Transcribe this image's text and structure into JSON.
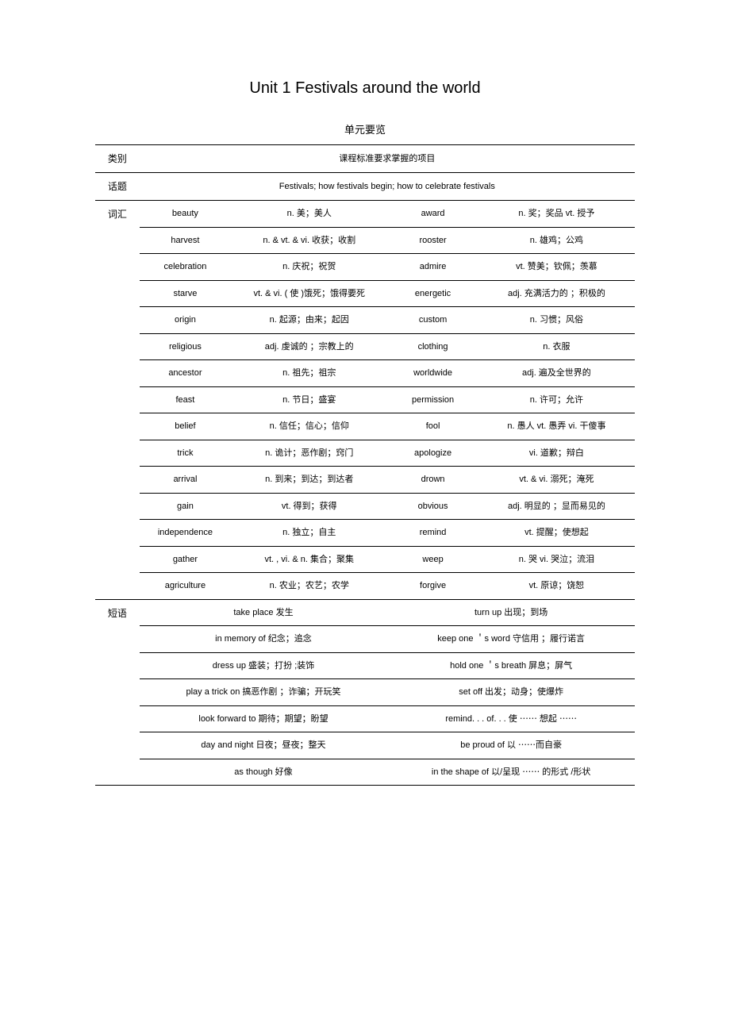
{
  "title": "Unit 1    Festivals around the world",
  "subtitle": "单元要览",
  "curriculum_label": "课程标准要求掌握的项目",
  "category_labels": {
    "category": "类别",
    "topic": "话题",
    "vocab": "词汇",
    "phrase": "短语"
  },
  "topic_text": "Festivals; how festivals begin; how to celebrate festivals",
  "vocab": [
    {
      "w1": "beauty",
      "d1": "n. 美；美人",
      "w2": "award",
      "d2": "n. 奖；奖品   vt. 授予"
    },
    {
      "w1": "harvest",
      "d1": "n. & vt. & vi.   收获；收割",
      "w2": "rooster",
      "d2": "n. 雄鸡；公鸡"
    },
    {
      "w1": "celebration",
      "d1": "n. 庆祝；祝贺",
      "w2": "admire",
      "d2": "vt. 赞美；钦佩；羡慕"
    },
    {
      "w1": "starve",
      "d1": "vt. & vi. ( 使 )饿死；饿得要死",
      "w2": "energetic",
      "d2": "adj. 充满活力的 ；积极的"
    },
    {
      "w1": "origin",
      "d1": "n. 起源；由来；起因",
      "w2": "custom",
      "d2": "n. 习惯；风俗"
    },
    {
      "w1": "religious",
      "d1": "adj. 虔诚的 ；宗教上的",
      "w2": "clothing",
      "d2": "n. 衣服"
    },
    {
      "w1": "ancestor",
      "d1": "n. 祖先；祖宗",
      "w2": "worldwide",
      "d2": "adj. 遍及全世界的"
    },
    {
      "w1": "feast",
      "d1": "n. 节日；盛宴",
      "w2": "permission",
      "d2": "n. 许可；允许"
    },
    {
      "w1": "belief",
      "d1": "n. 信任；信心；信仰",
      "w2": "fool",
      "d2": "n. 愚人   vt. 愚弄   vi. 干傻事"
    },
    {
      "w1": "trick",
      "d1": "n. 诡计；恶作剧；窍门",
      "w2": "apologize",
      "d2": "vi. 道歉；辩白"
    },
    {
      "w1": "arrival",
      "d1": "n. 到来；到达；到达者",
      "w2": "drown",
      "d2": "vt. & vi.  溺死；淹死"
    },
    {
      "w1": "gain",
      "d1": "vt. 得到；获得",
      "w2": "obvious",
      "d2": "adj. 明显的 ；显而易见的"
    },
    {
      "w1": "independence",
      "d1": "n. 独立；自主",
      "w2": "remind",
      "d2": "vt. 提醒；使想起"
    },
    {
      "w1": "gather",
      "d1": "vt. , vi. & n.   集合；聚集",
      "w2": "weep",
      "d2": "n. 哭   vi. 哭泣；流泪"
    },
    {
      "w1": "agriculture",
      "d1": "n. 农业；农艺；农学",
      "w2": "forgive",
      "d2": "vt. 原谅；饶恕"
    }
  ],
  "phrases": [
    {
      "l": "take place 发生",
      "r": "turn up 出现；到场"
    },
    {
      "l": "in memory of  纪念；追念",
      "r": "keep one ＇s word 守信用 ；履行诺言"
    },
    {
      "l": "dress up 盛装；打扮 ;装饰",
      "r": "hold one ＇s breath 屏息；屏气"
    },
    {
      "l": "play a trick on 搞恶作剧 ；诈骗；开玩笑",
      "r": "set off 出发；动身；使爆炸"
    },
    {
      "l": "look forward to  期待；期望；盼望",
      "r": "remind. . . of. . .  使 ⋯⋯ 想起 ⋯⋯"
    },
    {
      "l": "day and night 日夜；昼夜；整天",
      "r": "be proud of 以 ⋯⋯而自豪"
    },
    {
      "l": "as though 好像",
      "r": "in the shape of 以/呈现 ⋯⋯ 的形式 /形状"
    }
  ],
  "col_widths": {
    "cat": "50",
    "w": "110",
    "d": "200",
    "w2": "110",
    "d2": "200"
  }
}
